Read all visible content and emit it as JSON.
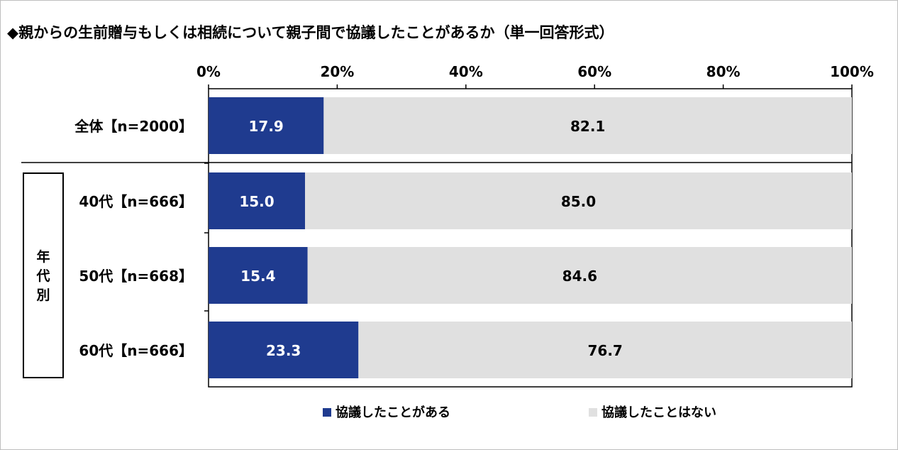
{
  "title": "◆親からの生前贈与もしくは相続について親子間で協議したことがあるか（単一回答形式）",
  "colors": {
    "series1": "#1f3b8f",
    "series2": "#e0e0e0"
  },
  "group_label_chars": [
    "年",
    "代",
    "別"
  ],
  "chart_data": {
    "type": "bar",
    "orientation": "horizontal",
    "stacked": true,
    "percent": true,
    "xlim": [
      0,
      100
    ],
    "x_ticks": [
      "0%",
      "20%",
      "40%",
      "60%",
      "80%",
      "100%"
    ],
    "categories": [
      "全体【n=2000】",
      "40代【n=666】",
      "50代【n=668】",
      "60代【n=666】"
    ],
    "series": [
      {
        "name": "協議したことがある",
        "values": [
          17.9,
          15.0,
          15.4,
          23.3
        ],
        "labels": [
          "17.9",
          "15.0",
          "15.4",
          "23.3"
        ]
      },
      {
        "name": "協議したことはない",
        "values": [
          82.1,
          85.0,
          84.6,
          76.7
        ],
        "labels": [
          "82.1",
          "85.0",
          "84.6",
          "76.7"
        ]
      }
    ],
    "grid": false,
    "legend": "bottom"
  }
}
